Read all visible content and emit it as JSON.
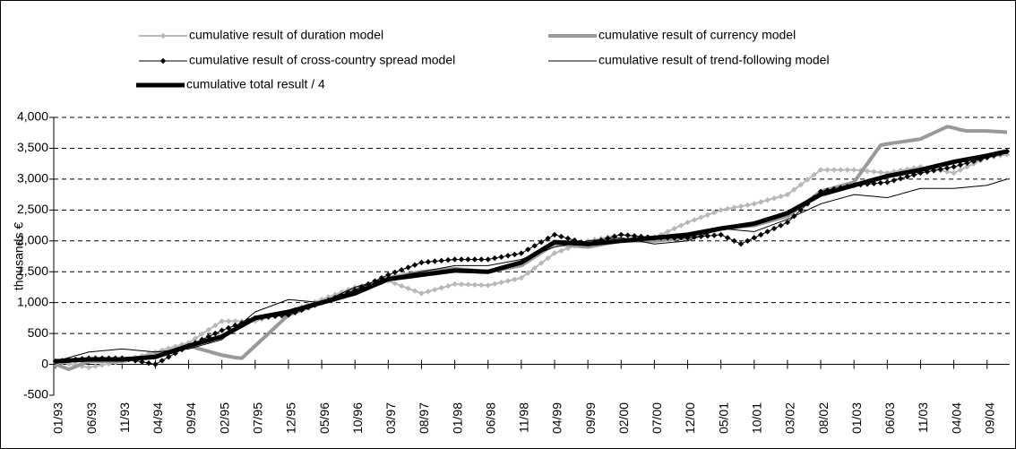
{
  "chart_data": {
    "type": "line",
    "y_label": "thousands €",
    "categories": [
      "01/93",
      null,
      null,
      null,
      null,
      "06/93",
      null,
      null,
      null,
      null,
      "11/93",
      null,
      null,
      null,
      null,
      "04/94",
      null,
      null,
      null,
      null,
      "09/94",
      null,
      null,
      null,
      null,
      "02/95",
      null,
      null,
      null,
      null,
      "07/95",
      null,
      null,
      null,
      null,
      "12/95",
      null,
      null,
      null,
      null,
      "05/96",
      null,
      null,
      null,
      null,
      "10/96",
      null,
      null,
      null,
      null,
      "03/97",
      null,
      null,
      null,
      null,
      "08/97",
      null,
      null,
      null,
      null,
      "01/98",
      null,
      null,
      null,
      null,
      "06/98",
      null,
      null,
      null,
      null,
      "11/98",
      null,
      null,
      null,
      null,
      "04/99",
      null,
      null,
      null,
      null,
      "09/99",
      null,
      null,
      null,
      null,
      "02/00",
      null,
      null,
      null,
      null,
      "07/00",
      null,
      null,
      null,
      null,
      "12/00",
      null,
      null,
      null,
      null,
      "05/01",
      null,
      null,
      null,
      null,
      "10/01",
      null,
      null,
      null,
      null,
      "03/02",
      null,
      null,
      null,
      null,
      "08/02",
      null,
      null,
      null,
      null,
      "01/03",
      null,
      null,
      null,
      null,
      "06/03",
      null,
      null,
      null,
      null,
      "11/03",
      null,
      null,
      null,
      null,
      "04/04",
      null,
      null,
      null,
      null,
      "09/04",
      null,
      null,
      null
    ],
    "series": [
      {
        "name": "cumulative result of duration model",
        "color": "#b8b8b8",
        "width": 2,
        "marker": "diamond",
        "values": [
          50,
          30,
          10,
          -10,
          -30,
          -50,
          -30,
          -10,
          10,
          30,
          50,
          80,
          110,
          140,
          170,
          200,
          230,
          260,
          290,
          320,
          350,
          420,
          490,
          560,
          630,
          700,
          700,
          700,
          700,
          700,
          700,
          730,
          760,
          790,
          820,
          850,
          890,
          930,
          970,
          1010,
          1050,
          1090,
          1130,
          1170,
          1210,
          1250,
          1270,
          1290,
          1310,
          1330,
          1350,
          1310,
          1270,
          1230,
          1190,
          1150,
          1180,
          1210,
          1240,
          1270,
          1300,
          1296,
          1292,
          1288,
          1284,
          1280,
          1304,
          1328,
          1352,
          1376,
          1400,
          1480,
          1560,
          1640,
          1720,
          1800,
          1840,
          1880,
          1920,
          1960,
          2000,
          2020,
          2040,
          2060,
          2080,
          2100,
          2090,
          2080,
          2070,
          2060,
          2050,
          2100,
          2150,
          2200,
          2250,
          2300,
          2340,
          2380,
          2420,
          2460,
          2500,
          2520,
          2540,
          2560,
          2580,
          2600,
          2630,
          2660,
          2690,
          2720,
          2750,
          2830,
          2910,
          2990,
          3070,
          3150,
          3150,
          3150,
          3150,
          3150,
          3150,
          3140,
          3130,
          3120,
          3110,
          3100,
          3120,
          3140,
          3160,
          3180,
          3200,
          3180,
          3160,
          3140,
          3120,
          3100,
          3150,
          3200,
          3250,
          3300,
          3350,
          3367,
          3383,
          3400
        ]
      },
      {
        "name": "cumulative result of currency model",
        "color": "#999999",
        "width": 4,
        "marker": "none",
        "values": [
          0,
          -40,
          -80,
          -37,
          7,
          50,
          50,
          50,
          50,
          50,
          50,
          70,
          90,
          110,
          130,
          150,
          180,
          210,
          240,
          270,
          300,
          270,
          240,
          210,
          180,
          150,
          130,
          110,
          100,
          200,
          300,
          400,
          500,
          600,
          700,
          800,
          840,
          880,
          920,
          960,
          1000,
          1040,
          1080,
          1120,
          1160,
          1200,
          1240,
          1280,
          1320,
          1360,
          1400,
          1420,
          1440,
          1460,
          1480,
          1500,
          1510,
          1520,
          1530,
          1540,
          1550,
          1540,
          1530,
          1520,
          1510,
          1500,
          1520,
          1540,
          1560,
          1580,
          1600,
          1670,
          1740,
          1810,
          1880,
          1950,
          1940,
          1930,
          1920,
          1910,
          1900,
          1920,
          1940,
          1960,
          1980,
          2000,
          2000,
          2000,
          2000,
          2000,
          2000,
          2010,
          2020,
          2030,
          2040,
          2050,
          2080,
          2110,
          2140,
          2170,
          2200,
          2210,
          2220,
          2230,
          2240,
          2250,
          2280,
          2310,
          2340,
          2370,
          2400,
          2480,
          2560,
          2640,
          2720,
          2800,
          2830,
          2860,
          2890,
          2920,
          2950,
          3100,
          3250,
          3400,
          3550,
          3570,
          3586,
          3602,
          3618,
          3634,
          3650,
          3700,
          3750,
          3800,
          3850,
          3830,
          3800,
          3780,
          3780,
          3780,
          3780,
          3773,
          3767,
          3760
        ]
      },
      {
        "name": "cumulative result of cross-country spread model",
        "color": "#000000",
        "width": 1,
        "marker": "diamond",
        "values": [
          50,
          60,
          70,
          80,
          90,
          100,
          100,
          100,
          100,
          100,
          100,
          80,
          60,
          40,
          20,
          0,
          60,
          120,
          180,
          240,
          300,
          350,
          400,
          450,
          500,
          550,
          590,
          630,
          670,
          710,
          750,
          760,
          770,
          780,
          790,
          800,
          840,
          880,
          920,
          960,
          1000,
          1040,
          1080,
          1120,
          1160,
          1200,
          1250,
          1300,
          1350,
          1400,
          1450,
          1490,
          1530,
          1570,
          1610,
          1650,
          1660,
          1670,
          1680,
          1690,
          1700,
          1700,
          1700,
          1700,
          1700,
          1700,
          1720,
          1740,
          1760,
          1780,
          1800,
          1860,
          1920,
          1980,
          2040,
          2100,
          2070,
          2040,
          2010,
          1980,
          1950,
          1980,
          2010,
          2040,
          2070,
          2100,
          2090,
          2080,
          2070,
          2060,
          2050,
          2050,
          2050,
          2050,
          2050,
          2050,
          2060,
          2070,
          2080,
          2090,
          2100,
          2050,
          2000,
          1950,
          2000,
          2050,
          2100,
          2150,
          2200,
          2250,
          2300,
          2400,
          2500,
          2600,
          2700,
          2800,
          2820,
          2840,
          2860,
          2880,
          2900,
          2910,
          2920,
          2930,
          2940,
          2950,
          2980,
          3010,
          3040,
          3070,
          3100,
          3120,
          3140,
          3160,
          3180,
          3200,
          3230,
          3260,
          3290,
          3320,
          3350,
          3383,
          3417,
          3450
        ]
      },
      {
        "name": "cumulative result of trend-following model",
        "color": "#000000",
        "width": 1,
        "marker": "none",
        "values": [
          50,
          80,
          110,
          140,
          170,
          200,
          210,
          220,
          230,
          240,
          250,
          240,
          230,
          220,
          210,
          200,
          210,
          220,
          230,
          240,
          250,
          280,
          310,
          340,
          370,
          400,
          490,
          580,
          670,
          760,
          850,
          890,
          930,
          970,
          1010,
          1050,
          1040,
          1030,
          1020,
          1010,
          1000,
          1050,
          1100,
          1150,
          1200,
          1250,
          1280,
          1310,
          1340,
          1370,
          1400,
          1420,
          1440,
          1460,
          1480,
          1500,
          1520,
          1540,
          1560,
          1580,
          1600,
          1600,
          1600,
          1600,
          1600,
          1600,
          1620,
          1640,
          1660,
          1680,
          1700,
          1740,
          1780,
          1820,
          1860,
          1900,
          1920,
          1940,
          1960,
          1980,
          2000,
          2010,
          2020,
          2030,
          2040,
          2050,
          2030,
          2010,
          1990,
          1970,
          1950,
          1960,
          1970,
          1980,
          1990,
          2000,
          2040,
          2080,
          2120,
          2160,
          2200,
          2190,
          2180,
          2170,
          2160,
          2150,
          2190,
          2230,
          2270,
          2310,
          2350,
          2400,
          2450,
          2500,
          2550,
          2600,
          2630,
          2660,
          2690,
          2720,
          2750,
          2740,
          2730,
          2720,
          2710,
          2700,
          2730,
          2760,
          2790,
          2820,
          2850,
          2850,
          2850,
          2850,
          2850,
          2850,
          2860,
          2870,
          2880,
          2890,
          2900,
          2933,
          2967,
          3000
        ]
      },
      {
        "name": "cumulative total result / 4",
        "color": "#000000",
        "width": 5,
        "marker": "none",
        "values": [
          50,
          56,
          62,
          68,
          74,
          80,
          80,
          80,
          80,
          80,
          80,
          88,
          96,
          104,
          112,
          120,
          156,
          192,
          228,
          264,
          300,
          330,
          360,
          390,
          420,
          450,
          510,
          570,
          630,
          690,
          750,
          770,
          790,
          810,
          830,
          850,
          880,
          910,
          940,
          970,
          1000,
          1030,
          1060,
          1090,
          1120,
          1150,
          1196,
          1242,
          1288,
          1334,
          1380,
          1394,
          1408,
          1422,
          1436,
          1450,
          1464,
          1478,
          1492,
          1506,
          1520,
          1516,
          1512,
          1508,
          1504,
          1500,
          1530,
          1560,
          1590,
          1620,
          1650,
          1716,
          1782,
          1848,
          1914,
          1980,
          1974,
          1968,
          1962,
          1956,
          1950,
          1960,
          1970,
          1980,
          1990,
          2000,
          2010,
          2020,
          2030,
          2040,
          2050,
          2060,
          2070,
          2080,
          2090,
          2100,
          2120,
          2140,
          2160,
          2180,
          2200,
          2216,
          2232,
          2248,
          2264,
          2280,
          2314,
          2348,
          2382,
          2416,
          2450,
          2510,
          2570,
          2630,
          2690,
          2750,
          2780,
          2810,
          2840,
          2870,
          2900,
          2930,
          2960,
          2990,
          3020,
          3050,
          3070,
          3090,
          3110,
          3130,
          3150,
          3176,
          3202,
          3228,
          3254,
          3280,
          3300,
          3320,
          3340,
          3360,
          3380,
          3403,
          3427,
          3450
        ]
      }
    ],
    "ylim": [
      -500,
      4000
    ],
    "yticks": [
      -500,
      0,
      500,
      {
        "value": 1000,
        "label": "1,000"
      },
      {
        "value": 1500,
        "label": "1,500"
      },
      {
        "value": 2000,
        "label": "2,000"
      },
      {
        "value": 2500,
        "label": "2,500"
      },
      {
        "value": 3000,
        "label": "3,000"
      },
      {
        "value": 3500,
        "label": "3,500"
      },
      {
        "value": 4000,
        "label": "4,000"
      }
    ],
    "grid": true
  }
}
